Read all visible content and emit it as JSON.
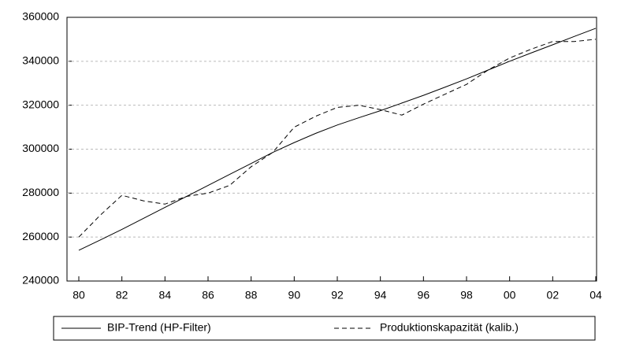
{
  "chart_data": {
    "type": "line",
    "x": [
      1980,
      1981,
      1982,
      1983,
      1984,
      1985,
      1986,
      1987,
      1988,
      1989,
      1990,
      1991,
      1992,
      1993,
      1994,
      1995,
      1996,
      1997,
      1998,
      1999,
      2000,
      2001,
      2002,
      2003,
      2004
    ],
    "series": [
      {
        "name": "BIP-Trend (HP-Filter)",
        "color": "#000000",
        "dash": "none",
        "values": [
          254000,
          258700,
          263500,
          268500,
          273500,
          278500,
          283500,
          288500,
          293500,
          298500,
          303000,
          307200,
          311000,
          314300,
          317500,
          321000,
          324500,
          328200,
          332000,
          336000,
          340000,
          343800,
          347500,
          351300,
          355000
        ]
      },
      {
        "name": "Produktionskapazität (kalib.)",
        "color": "#000000",
        "dash": "6 4",
        "values": [
          260000,
          270000,
          279000,
          276500,
          275000,
          278500,
          280000,
          283500,
          292000,
          298500,
          310000,
          315000,
          319000,
          320000,
          318000,
          315500,
          320500,
          325000,
          329500,
          336000,
          341500,
          345500,
          349000,
          349000,
          350000
        ]
      }
    ],
    "xlim": [
      1980,
      2004
    ],
    "xticks": [
      {
        "value": 1980,
        "label": "80"
      },
      {
        "value": 1982,
        "label": "82"
      },
      {
        "value": 1984,
        "label": "84"
      },
      {
        "value": 1986,
        "label": "86"
      },
      {
        "value": 1988,
        "label": "88"
      },
      {
        "value": 1990,
        "label": "90"
      },
      {
        "value": 1992,
        "label": "92"
      },
      {
        "value": 1994,
        "label": "94"
      },
      {
        "value": 1996,
        "label": "96"
      },
      {
        "value": 1998,
        "label": "98"
      },
      {
        "value": 2000,
        "label": "00"
      },
      {
        "value": 2002,
        "label": "02"
      },
      {
        "value": 2004,
        "label": "04"
      }
    ],
    "ylim": [
      240000,
      360000
    ],
    "yticks": [
      240000,
      260000,
      280000,
      300000,
      320000,
      340000,
      360000
    ],
    "grid": true
  }
}
